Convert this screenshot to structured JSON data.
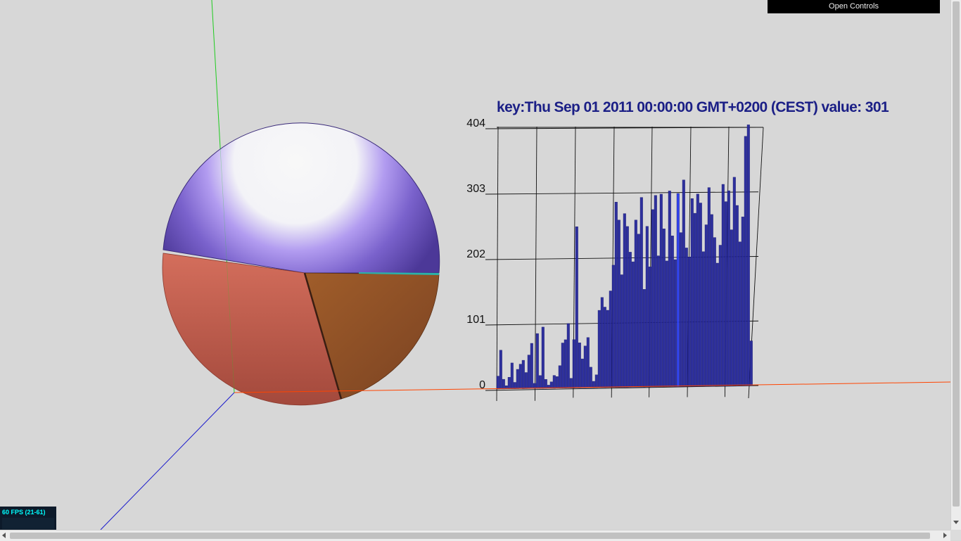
{
  "controls": {
    "open_label": "Open Controls"
  },
  "stats": {
    "fps_label": "60 FPS (21-61)"
  },
  "colors": {
    "bar": "#26289a",
    "bar_highlight": "#2a3ef0",
    "title": "#1b1f86",
    "x_axis": "#ff4400",
    "y_axis": "#22cc22",
    "z_axis": "#1a1acc",
    "pie_purple": "#6a52c0",
    "pie_red": "#c9614f",
    "pie_brown": "#96552a",
    "pie_teal": "#2ab3a8"
  },
  "chart_data": [
    {
      "type": "pie",
      "slices": [
        {
          "label": "",
          "value": 0.505,
          "color": "#6a52c0"
        },
        {
          "label": "",
          "value": 0.005,
          "color": "#2ab3a8"
        },
        {
          "label": "",
          "value": 0.255,
          "color": "#96552a"
        },
        {
          "label": "",
          "value": 0.235,
          "color": "#c9614f"
        }
      ]
    },
    {
      "type": "bar",
      "title": "key:Thu Sep 01 2011 00:00:00 GMT+0200 (CEST) value: 301",
      "ylim": [
        0,
        404
      ],
      "yticks": [
        0,
        101,
        202,
        303,
        404
      ],
      "highlight_index": 64,
      "values": [
        20,
        60,
        15,
        5,
        18,
        40,
        10,
        30,
        38,
        44,
        25,
        52,
        70,
        8,
        85,
        20,
        95,
        14,
        5,
        10,
        20,
        18,
        35,
        70,
        75,
        100,
        15,
        75,
        250,
        70,
        45,
        65,
        78,
        32,
        10,
        20,
        120,
        140,
        125,
        120,
        150,
        190,
        288,
        260,
        175,
        270,
        250,
        210,
        195,
        260,
        238,
        295,
        152,
        250,
        187,
        276,
        298,
        204,
        300,
        246,
        196,
        305,
        235,
        198,
        301,
        240,
        322,
        216,
        202,
        293,
        270,
        300,
        286,
        210,
        252,
        310,
        268,
        232,
        192,
        220,
        315,
        288,
        305,
        244,
        326,
        282,
        225,
        264,
        390,
        408,
        70
      ]
    }
  ]
}
